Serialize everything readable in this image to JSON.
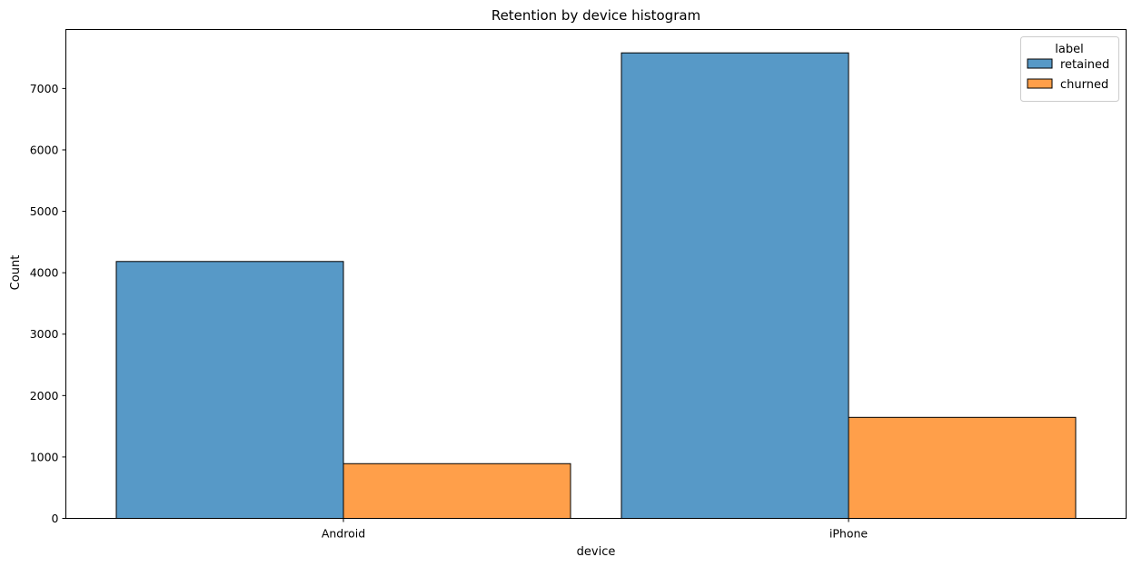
{
  "chart_data": {
    "type": "bar",
    "title": "Retention by device histogram",
    "xlabel": "device",
    "ylabel": "Count",
    "categories": [
      "Android",
      "iPhone"
    ],
    "series": [
      {
        "name": "retained",
        "values": [
          4183,
          7580
        ],
        "color": "#5799c7"
      },
      {
        "name": "churned",
        "values": [
          891,
          1645
        ],
        "color": "#ff9f4a"
      }
    ],
    "ylim": [
      0,
      7960
    ],
    "yticks": [
      0,
      1000,
      2000,
      3000,
      4000,
      5000,
      6000,
      7000
    ],
    "legend": {
      "title": "label",
      "placement": "top-right"
    },
    "grid": false,
    "bar_edge_color": "#000000"
  }
}
